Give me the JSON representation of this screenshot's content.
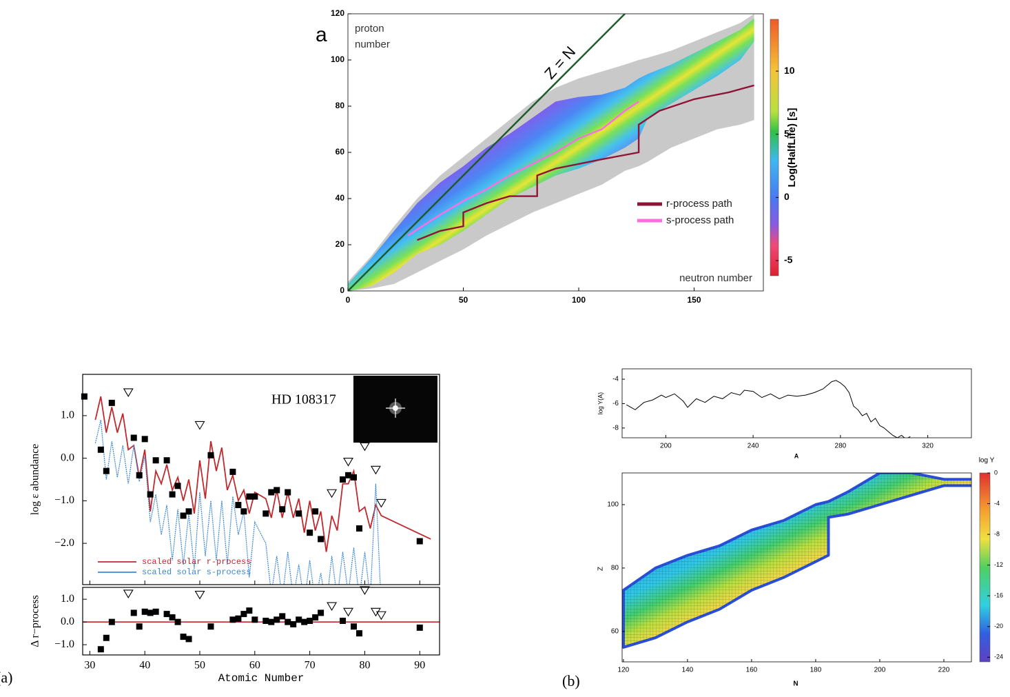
{
  "chart_data": [
    {
      "type": "nuclide",
      "panel_label": "a",
      "xlim": [
        0,
        180
      ],
      "ylim": [
        0,
        120
      ],
      "xticks": [
        0,
        50,
        100,
        150
      ],
      "yticks": [
        0,
        20,
        40,
        60,
        80,
        100,
        120
      ],
      "xlabel": "neutron number",
      "ylabel": [
        "proton",
        "number"
      ],
      "diagonal_label": "Z = N",
      "colorbar": {
        "label": "Log(HalfLife) [s]",
        "lim": [
          -6.2,
          14.1
        ],
        "ticks": [
          -5,
          0,
          5,
          10
        ]
      },
      "regions": {
        "N": [
          0,
          10,
          20,
          30,
          40,
          50,
          60,
          70,
          80,
          90,
          100,
          110,
          120,
          126,
          130,
          140,
          150,
          160,
          170,
          176
        ],
        "predicted_zmin": [
          0,
          1,
          3,
          8,
          13,
          18,
          24,
          29,
          34,
          38,
          42,
          46,
          52,
          54,
          56,
          62,
          66,
          70,
          72,
          74
        ],
        "predicted_zmax": [
          4,
          15,
          28,
          40,
          50,
          58,
          66,
          74,
          82,
          88,
          92,
          95,
          98,
          100,
          101,
          104,
          108,
          112,
          116,
          120
        ],
        "known_zmin": [
          0,
          2,
          8,
          16,
          20,
          26,
          33,
          40,
          45,
          50,
          53,
          57,
          62,
          66,
          75,
          81,
          87,
          93,
          100,
          108
        ],
        "known_zmax": [
          3,
          14,
          26,
          38,
          47,
          54,
          62,
          68,
          75,
          82,
          84,
          85,
          88,
          92,
          94,
          98,
          103,
          108,
          113,
          118
        ],
        "predicted_color": "#c9c9c9"
      },
      "legend": "lower right",
      "series": [
        {
          "name": "r-process path",
          "color": "#8e1538",
          "x": [
            30,
            40,
            50,
            50,
            60,
            70,
            82,
            82,
            90,
            100,
            110,
            126,
            126,
            135,
            150,
            165,
            176
          ],
          "values": [
            22,
            26,
            28,
            34,
            38,
            41,
            41,
            50,
            53,
            55,
            57,
            60,
            72,
            78,
            83,
            86,
            89
          ]
        },
        {
          "name": "s-process path",
          "color": "#ff6ee0",
          "x": [
            26,
            40,
            50,
            60,
            70,
            82,
            90,
            100,
            110,
            120,
            126
          ],
          "values": [
            24,
            33,
            39,
            44,
            50,
            56,
            60,
            66,
            70,
            78,
            82
          ]
        }
      ]
    },
    {
      "type": "abundance",
      "panel_label": "(a)",
      "annotation": "HD 108317",
      "ylabel": "log ε abundance",
      "legend": "lower left",
      "xlim": [
        28.7,
        93.6
      ],
      "xticks": [
        30,
        40,
        50,
        60,
        70,
        80,
        90
      ],
      "ylim": [
        -2.97,
        1.97
      ],
      "yticks": [
        {
          "value": 1,
          "label": "1.0"
        },
        {
          "value": 0,
          "label": "0.0"
        },
        {
          "value": -1,
          "label": "−1.0"
        },
        {
          "value": -2,
          "label": "−2.0"
        }
      ],
      "x": [
        31,
        32,
        33,
        34,
        35,
        36,
        37,
        38,
        39,
        40,
        41,
        42,
        43,
        44,
        45,
        46,
        47,
        48,
        49,
        50,
        51,
        52,
        53,
        54,
        55,
        56,
        57,
        58,
        59,
        60,
        62,
        63,
        64,
        65,
        66,
        67,
        68,
        69,
        70,
        71,
        72,
        73,
        74,
        75,
        76,
        77,
        78,
        79,
        80,
        81,
        82,
        83,
        92
      ],
      "series": [
        {
          "name": "scaled solar r-process",
          "color": "#c0282d",
          "values": [
            0.9,
            1.45,
            0.6,
            1.2,
            0.6,
            1.05,
            0.2,
            0.3,
            -0.45,
            0.2,
            -1.25,
            -0.3,
            -0.6,
            -0.15,
            -0.75,
            -0.45,
            -1.0,
            -0.5,
            -1.3,
            -0.05,
            -0.95,
            0.4,
            -0.3,
            0.25,
            -0.75,
            -0.4,
            -1.0,
            -0.75,
            -1.3,
            -0.8,
            -0.95,
            -1.4,
            -0.75,
            -1.4,
            -0.8,
            -1.4,
            -0.95,
            -1.75,
            -1.0,
            -1.7,
            -1.25,
            -2.2,
            -1.35,
            -1.7,
            -0.6,
            -0.6,
            -0.3,
            -1.25,
            -1.15,
            -1.65,
            -1.1,
            -1.35,
            -1.9
          ]
        },
        {
          "name": "scaled solar s-process",
          "color": "#3b86d6",
          "values": [
            0.35,
            0.9,
            -0.5,
            0.4,
            -0.45,
            0.3,
            -0.6,
            0.3,
            -0.55,
            0.05,
            -1.5,
            -0.85,
            -1.8,
            -1.1,
            -2.4,
            -1.2,
            -2.5,
            -1.3,
            -2.6,
            -0.8,
            -2.3,
            -1.0,
            -2.4,
            -1.0,
            -2.5,
            -0.9,
            -1.8,
            -1.25,
            -2.8,
            -1.5,
            -2.0,
            -3.2,
            -2.3,
            -3.3,
            -2.2,
            -3.3,
            -2.5,
            -3.4,
            -2.4,
            -3.4,
            -2.7,
            -3.5,
            -2.3,
            -3.3,
            -2.2,
            -3.2,
            -2.1,
            -3.3,
            -2.2,
            -3.3,
            -0.6,
            -3.5,
            null
          ]
        },
        {
          "marker": "square",
          "color": "#000000",
          "x": [
            29,
            32,
            33,
            34,
            38,
            39,
            40,
            41,
            42,
            44,
            45,
            46,
            47,
            48,
            52,
            56,
            57,
            58,
            59,
            60,
            62,
            63,
            64,
            65,
            66,
            68,
            70,
            71,
            72,
            76,
            77,
            78,
            79,
            90
          ],
          "values": [
            1.45,
            0.2,
            -0.3,
            1.3,
            0.48,
            -0.4,
            0.45,
            -0.85,
            -0.05,
            -0.05,
            -0.85,
            -0.65,
            -1.35,
            -1.25,
            0.07,
            -0.32,
            -1.1,
            -1.25,
            -0.9,
            -0.9,
            -1.3,
            -0.8,
            -0.75,
            -1.2,
            -0.8,
            -1.3,
            -1.75,
            -1.25,
            -1.9,
            -0.5,
            -0.4,
            -0.45,
            -1.65,
            -1.95
          ]
        },
        {
          "marker": "triangle",
          "color": "#000000",
          "x": [
            37,
            50,
            74,
            77,
            80,
            82,
            83
          ],
          "values": [
            1.55,
            0.78,
            -0.82,
            -0.08,
            0.28,
            -0.27,
            -1.05
          ]
        }
      ]
    },
    {
      "type": "abundance",
      "xlabel": "Atomic Number",
      "ylabel": "Δ r−process",
      "reference": 0,
      "reference_color": "#c0282d",
      "xlim": [
        28.7,
        93.6
      ],
      "xticks": [
        30,
        40,
        50,
        60,
        70,
        80,
        90
      ],
      "ylim": [
        -1.45,
        1.52
      ],
      "yticks": [
        {
          "value": 1,
          "label": "1.0"
        },
        {
          "value": 0,
          "label": "0.0"
        },
        {
          "value": -1,
          "label": "−1.0"
        }
      ],
      "series": [
        {
          "marker": "square",
          "color": "#000000",
          "x": [
            32,
            33,
            34,
            38,
            39,
            40,
            41,
            42,
            44,
            45,
            46,
            47,
            48,
            52,
            56,
            57,
            58,
            59,
            60,
            62,
            63,
            64,
            65,
            66,
            67,
            68,
            69,
            70,
            71,
            72,
            76,
            78,
            79,
            90
          ],
          "values": [
            -1.2,
            -0.7,
            0.0,
            0.4,
            -0.2,
            0.45,
            0.4,
            0.45,
            0.35,
            0.2,
            0.0,
            -0.65,
            -0.75,
            -0.2,
            0.1,
            0.15,
            0.35,
            0.5,
            0.1,
            0.05,
            0.0,
            0.1,
            0.25,
            0.0,
            -0.1,
            0.1,
            0.0,
            0.05,
            0.2,
            0.4,
            0.05,
            -0.2,
            -0.5,
            -0.25
          ]
        },
        {
          "marker": "triangle",
          "color": "#000000",
          "x": [
            37,
            50,
            74,
            77,
            80,
            82,
            83
          ],
          "values": [
            1.25,
            1.2,
            0.7,
            0.45,
            1.4,
            0.45,
            0.3
          ]
        }
      ]
    },
    {
      "type": "line",
      "xlabel": "A",
      "ylabel": "log Y(A)",
      "xlim": [
        180,
        340
      ],
      "xticks": [
        200,
        240,
        280,
        320
      ],
      "ylim": [
        -8.8,
        -3.15
      ],
      "yticks": [
        -4,
        -6,
        -8
      ],
      "x": [
        182,
        186,
        190,
        194,
        198,
        200,
        204,
        208,
        210,
        214,
        218,
        222,
        226,
        230,
        234,
        236,
        240,
        244,
        248,
        252,
        256,
        260,
        264,
        268,
        272,
        276,
        278,
        280,
        282,
        284,
        286,
        288,
        290,
        292,
        294,
        296,
        298,
        300,
        302,
        304,
        306,
        308,
        310,
        312
      ],
      "values": [
        -6.1,
        -6.5,
        -5.9,
        -5.7,
        -5.3,
        -5.5,
        -5.2,
        -5.8,
        -6.3,
        -5.6,
        -5.9,
        -5.4,
        -5.6,
        -5.1,
        -5.3,
        -4.9,
        -5.0,
        -5.5,
        -5.2,
        -5.6,
        -5.3,
        -5.4,
        -5.3,
        -5.1,
        -4.8,
        -4.2,
        -4.1,
        -4.3,
        -4.6,
        -5.1,
        -6.2,
        -6.5,
        -7.0,
        -6.8,
        -7.5,
        -7.2,
        -7.8,
        -8.0,
        -8.3,
        -8.6,
        -8.8,
        -8.6,
        -8.9,
        -8.7
      ],
      "color": "#000000"
    },
    {
      "type": "heatmap",
      "panel_label": "(b)",
      "xlabel": "N",
      "ylabel": "Z",
      "xlim": [
        119.6,
        228.6
      ],
      "xticks": [
        120,
        140,
        160,
        180,
        200,
        220
      ],
      "ylim": [
        50.4,
        110
      ],
      "yticks": [
        60,
        80,
        100
      ],
      "colorbar": {
        "label": "log Y",
        "lim": [
          -24.6,
          0
        ],
        "ticks": [
          0,
          -4,
          -8,
          -12,
          -16,
          -20,
          -24
        ]
      },
      "region": {
        "N": [
          120,
          130,
          140,
          150,
          160,
          170,
          180,
          184,
          184,
          190,
          200,
          210,
          220,
          229
        ],
        "zmin": [
          55,
          58,
          63,
          67,
          73,
          77,
          82,
          84,
          96,
          97,
          100,
          103,
          106,
          106
        ],
        "zmax": [
          73,
          80,
          84,
          87,
          92,
          95,
          100,
          101,
          101,
          104,
          110,
          110,
          108,
          108
        ]
      }
    }
  ]
}
